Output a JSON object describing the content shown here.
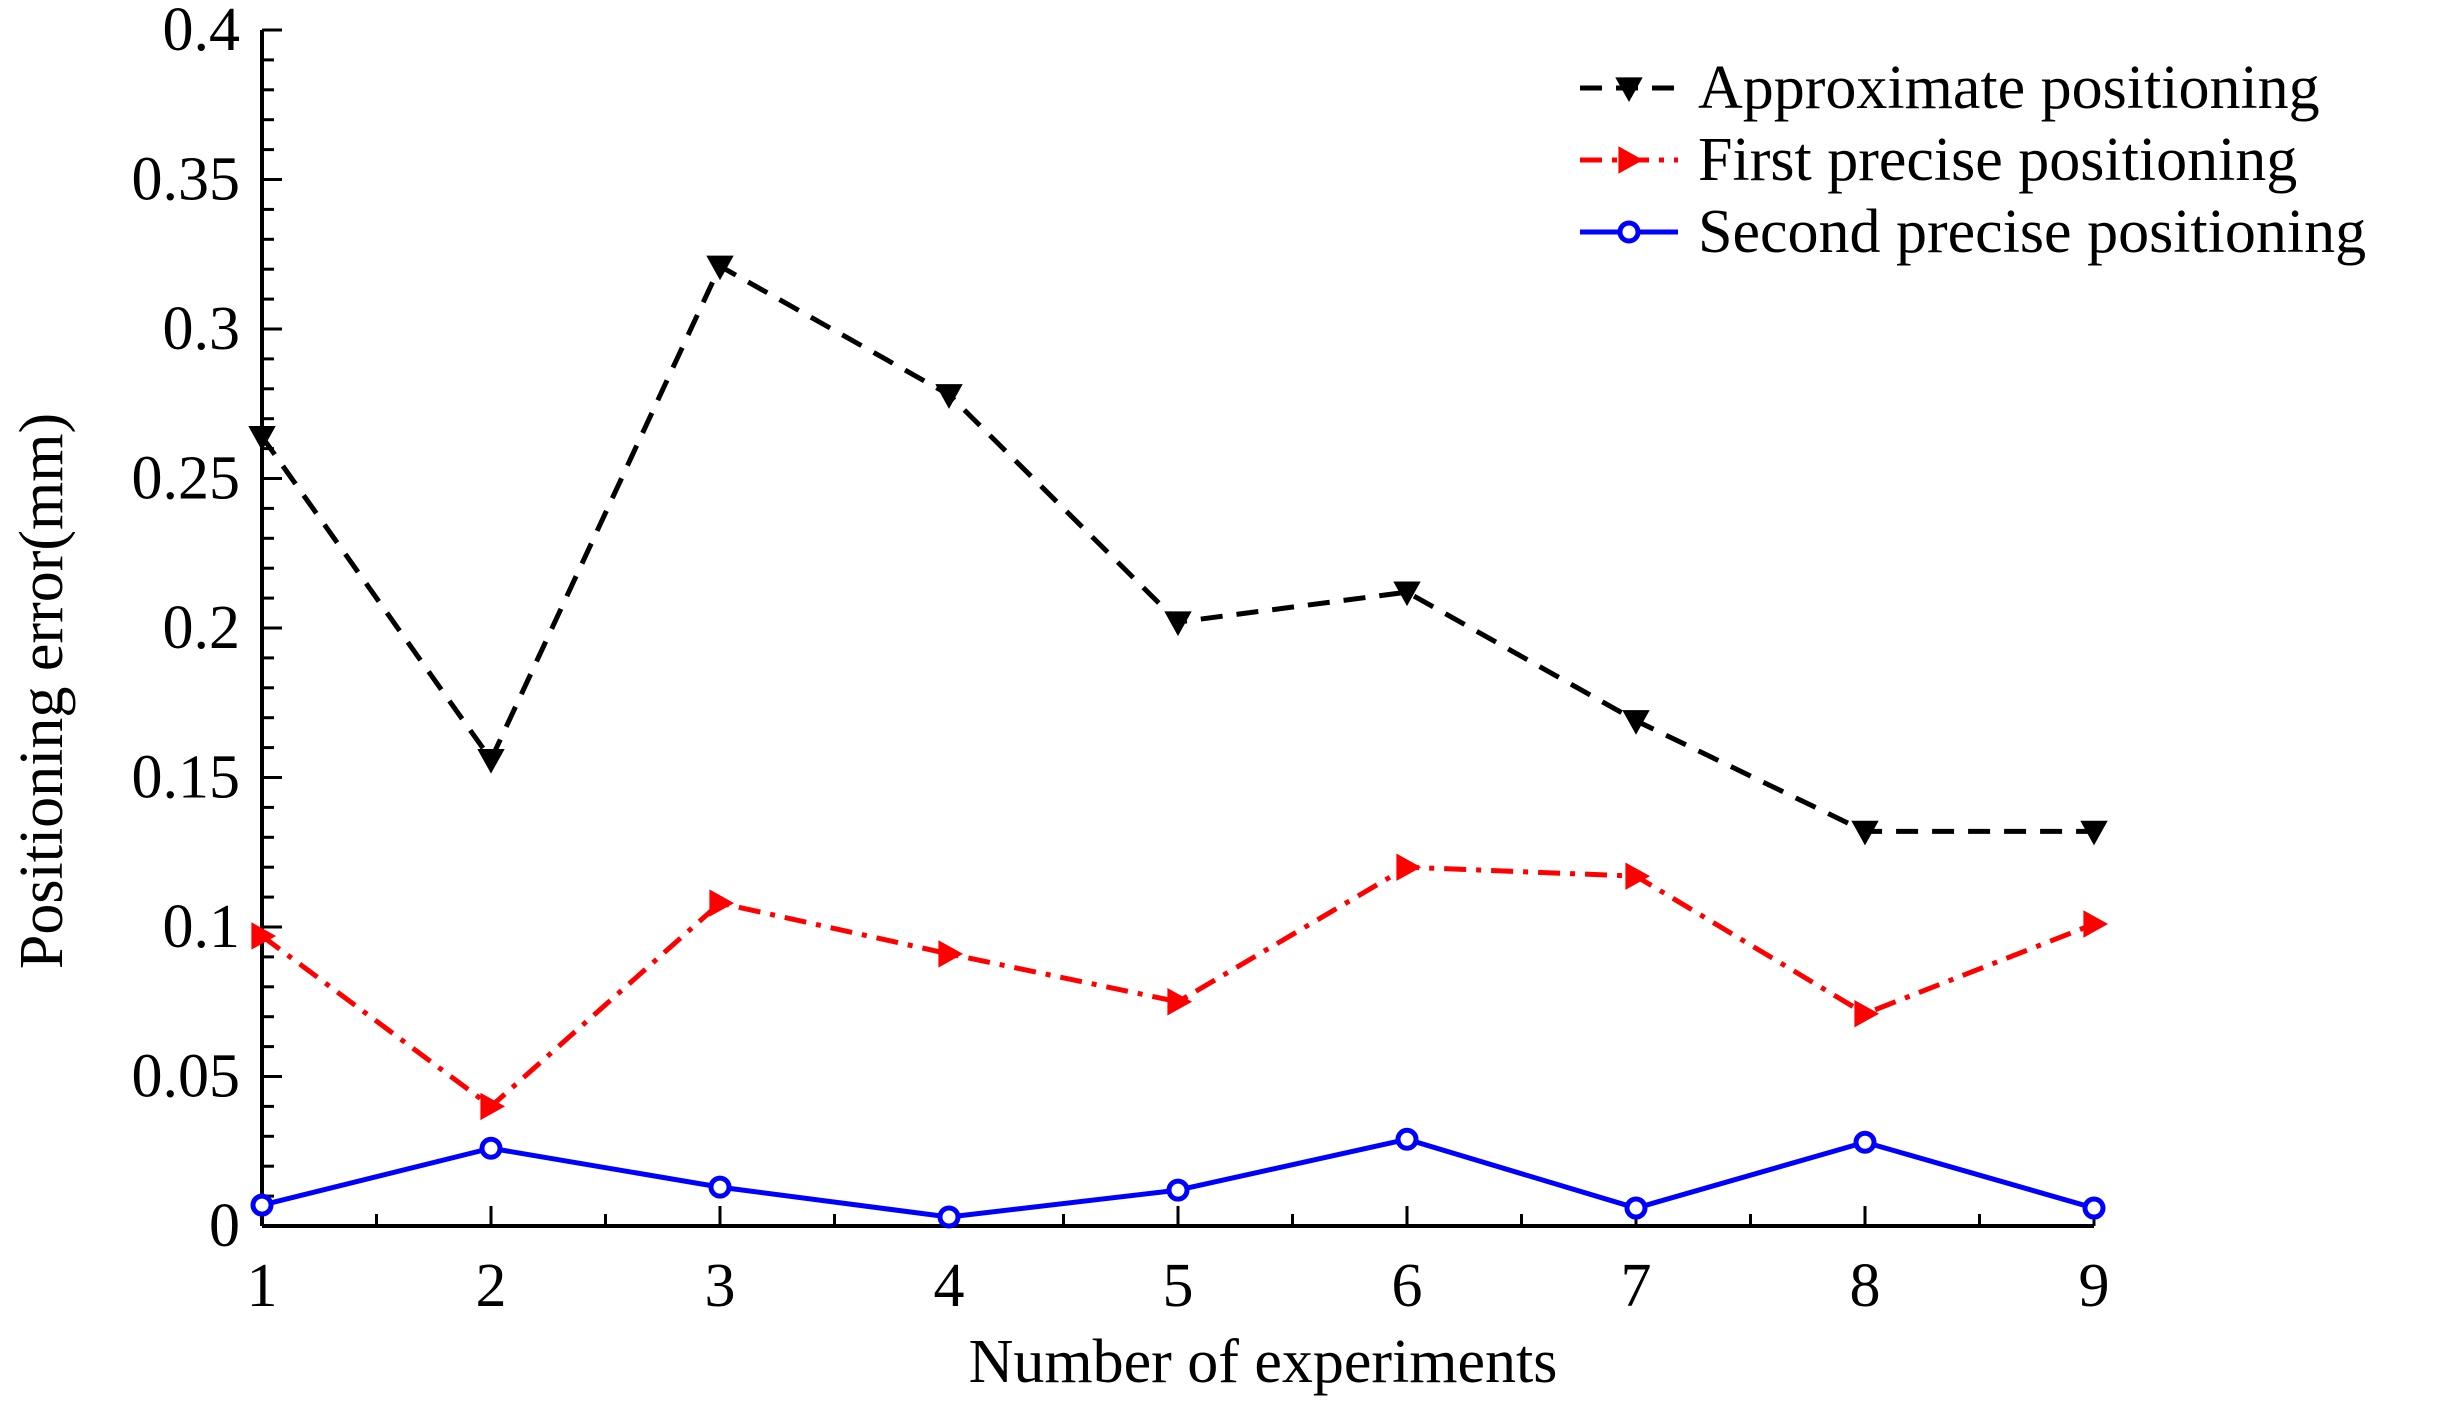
{
  "chart_data": {
    "type": "line",
    "title": "",
    "xlabel": "Number of experiments",
    "ylabel": "Positioning error(mm)",
    "x": [
      1,
      2,
      3,
      4,
      5,
      6,
      7,
      8,
      9
    ],
    "xlim": [
      1,
      9
    ],
    "ylim": [
      0,
      0.4
    ],
    "x_ticks": [
      "1",
      "2",
      "3",
      "4",
      "5",
      "6",
      "7",
      "8",
      "9"
    ],
    "y_ticks": [
      {
        "value": 0,
        "label": "0"
      },
      {
        "value": 0.05,
        "label": "0.05"
      },
      {
        "value": 0.1,
        "label": "0.1"
      },
      {
        "value": 0.15,
        "label": "0.15"
      },
      {
        "value": 0.2,
        "label": "0.2"
      },
      {
        "value": 0.25,
        "label": "0.25"
      },
      {
        "value": 0.3,
        "label": "0.3"
      },
      {
        "value": 0.35,
        "label": "0.35"
      },
      {
        "value": 0.4,
        "label": "0.4"
      }
    ],
    "grid": false,
    "legend_position": "top-right",
    "series": [
      {
        "name": "Approximate positioning",
        "values": [
          0.264,
          0.156,
          0.321,
          0.278,
          0.202,
          0.212,
          0.169,
          0.132,
          0.132
        ],
        "color": "#000000",
        "line_style": "dashed",
        "marker": "triangle-down"
      },
      {
        "name": "First precise positioning",
        "values": [
          0.097,
          0.04,
          0.108,
          0.091,
          0.075,
          0.12,
          0.117,
          0.071,
          0.101
        ],
        "color": "#ff0000",
        "line_style": "dash-dot",
        "marker": "triangle-right"
      },
      {
        "name": "Second precise positioning",
        "values": [
          0.007,
          0.026,
          0.013,
          0.003,
          0.012,
          0.029,
          0.006,
          0.028,
          0.006
        ],
        "color": "#0000ff",
        "line_style": "solid",
        "marker": "circle"
      }
    ]
  }
}
